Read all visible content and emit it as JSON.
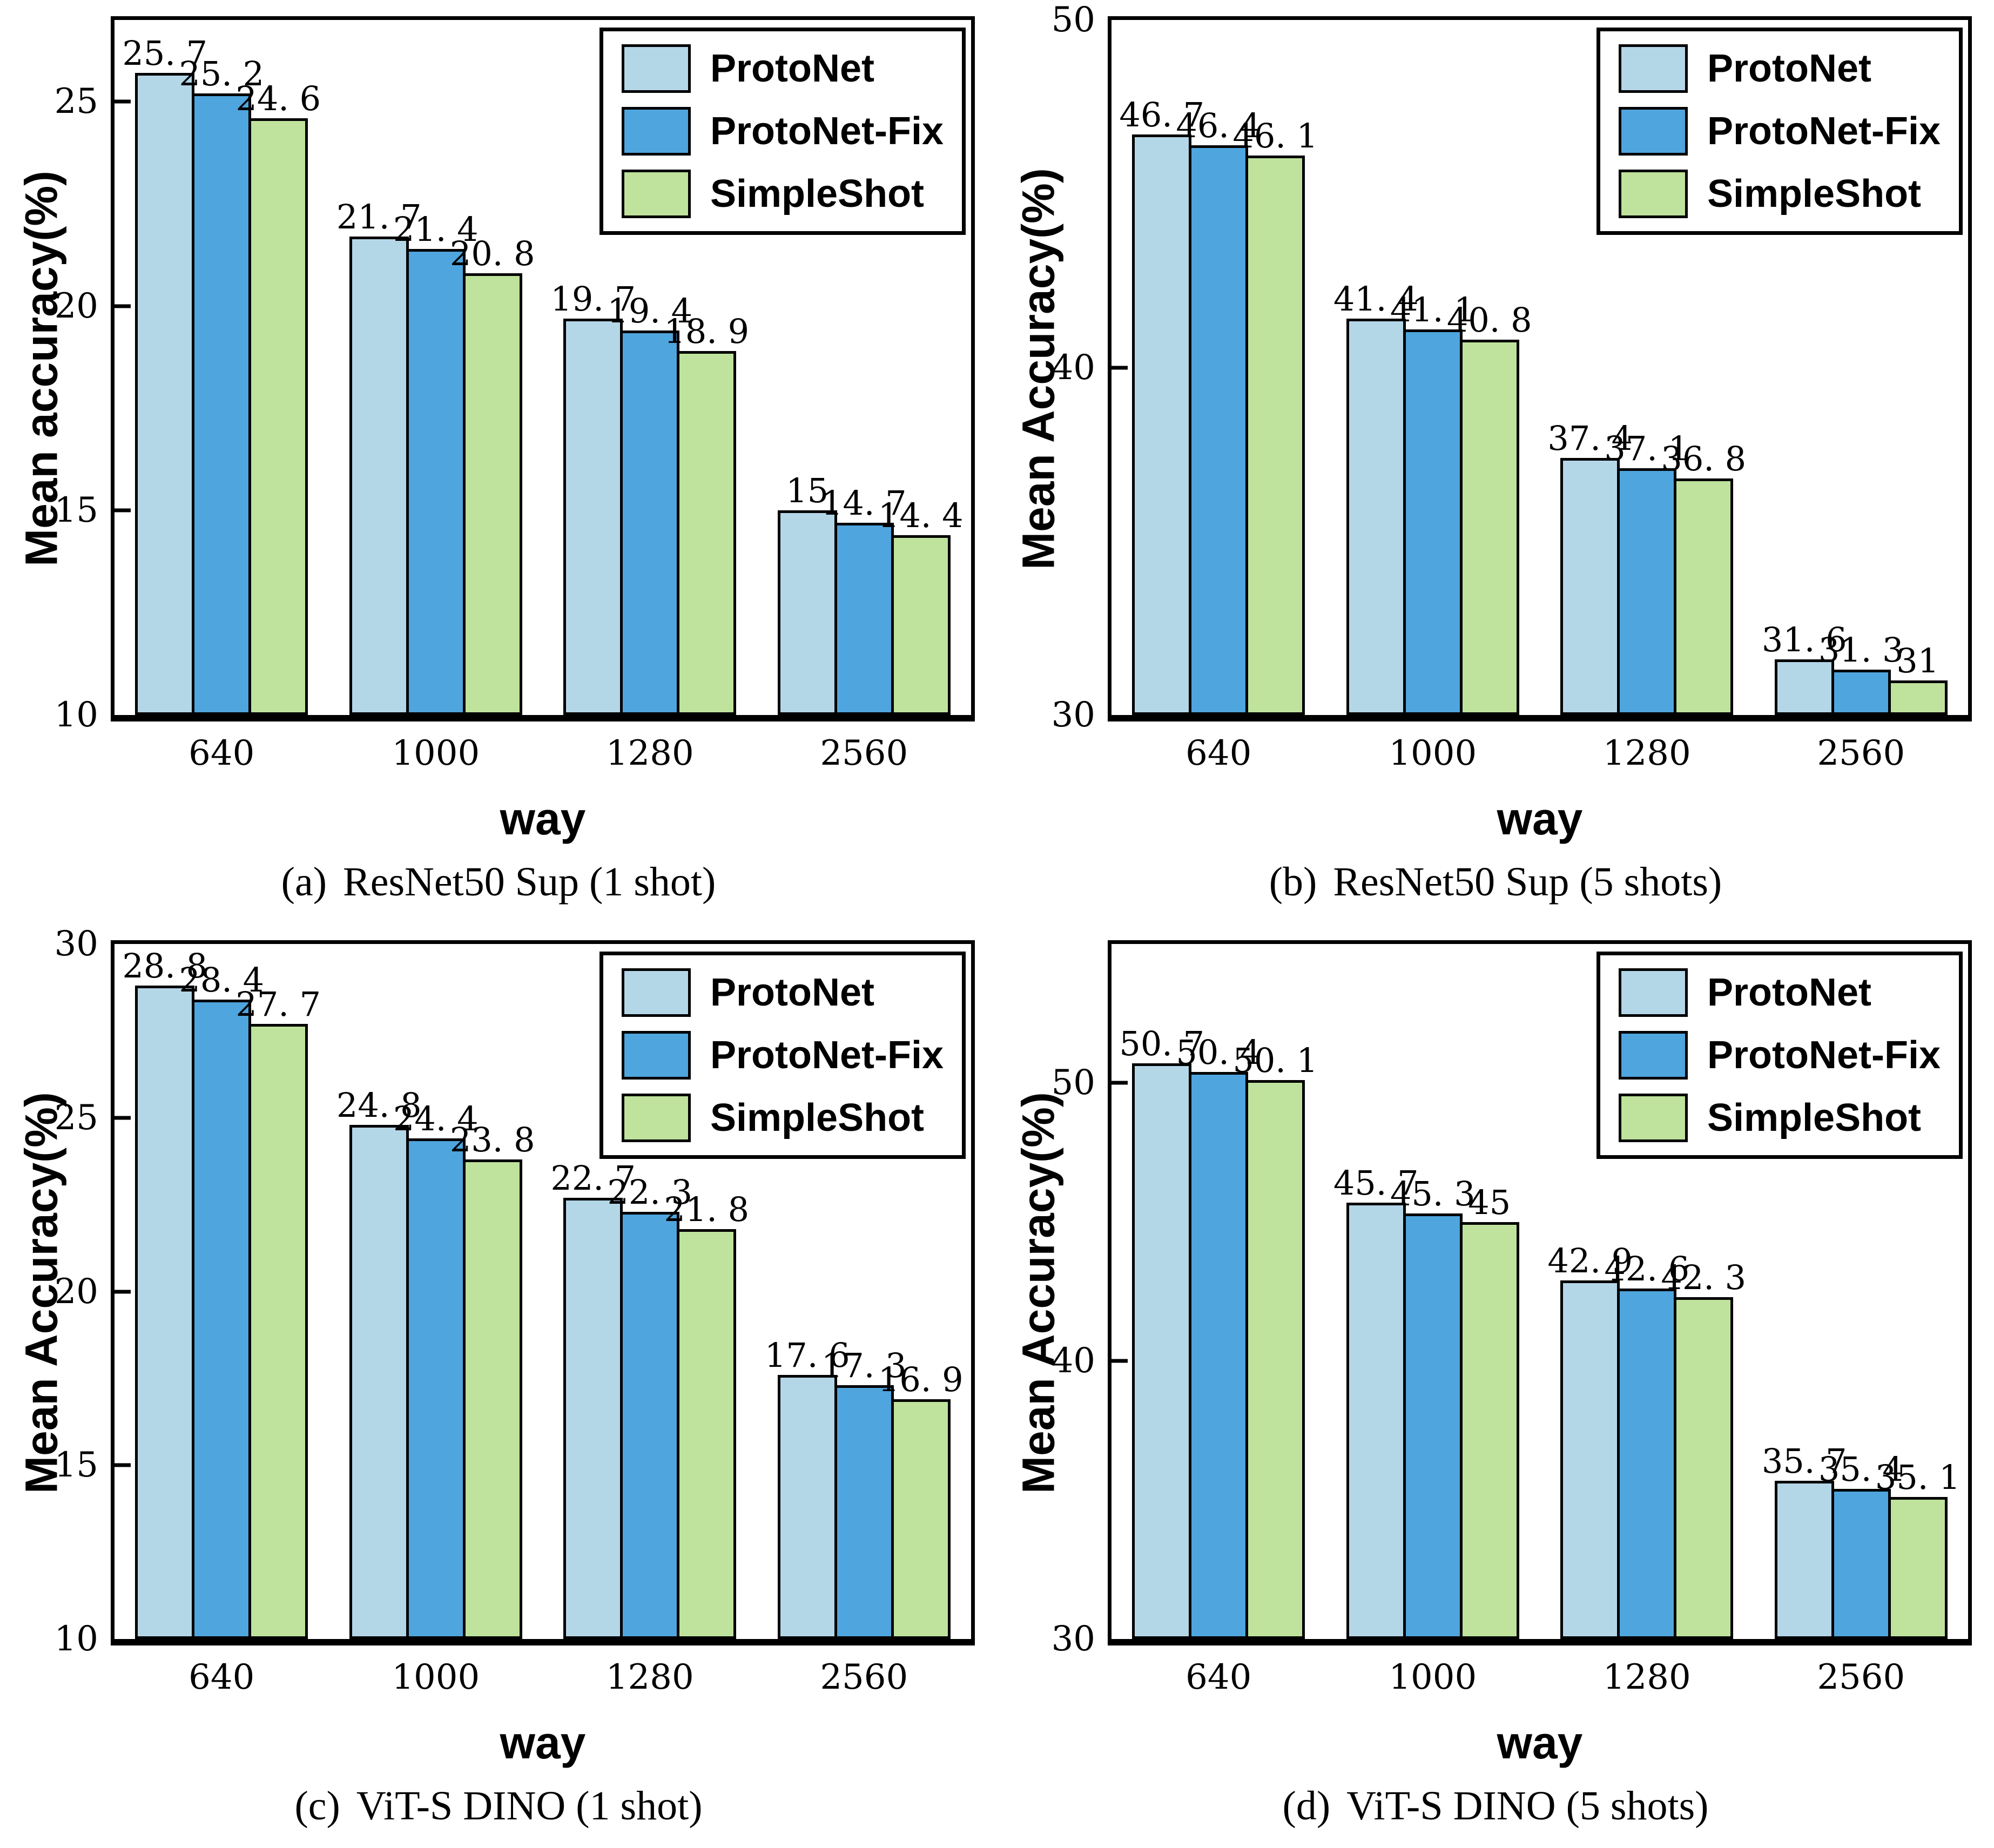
{
  "page": {
    "background": "#ffffff",
    "bar_border_color": "#000000"
  },
  "legend": {
    "position": "top-right",
    "items": [
      {
        "label": "ProtoNet",
        "color": "#b4d7e8"
      },
      {
        "label": "ProtoNet-Fix",
        "color": "#4fa5dd"
      },
      {
        "label": "SimpleShot",
        "color": "#bfe39c"
      }
    ]
  },
  "chart_data": [
    {
      "type": "bar",
      "title": "(a) ResNet50 Sup (1 shot)",
      "caption_prefix": "(a)",
      "caption_text": "ResNet50 Sup (1 shot)",
      "xlabel": "way",
      "ylabel": "Mean accuracy(%)",
      "categories": [
        "640",
        "1000",
        "1280",
        "2560"
      ],
      "yticks": [
        10,
        15,
        20,
        25
      ],
      "ylim": [
        10,
        27
      ],
      "grid": false,
      "legend_position": "top-right",
      "series": [
        {
          "name": "ProtoNet",
          "values": [
            25.7,
            21.7,
            19.7,
            15
          ]
        },
        {
          "name": "ProtoNet-Fix",
          "values": [
            25.2,
            21.4,
            19.4,
            14.7
          ]
        },
        {
          "name": "SimpleShot",
          "values": [
            24.6,
            20.8,
            18.9,
            14.4
          ]
        }
      ]
    },
    {
      "type": "bar",
      "title": "(b) ResNet50 Sup (5 shots)",
      "caption_prefix": "(b)",
      "caption_text": "ResNet50 Sup (5 shots)",
      "xlabel": "way",
      "ylabel": "Mean Accuracy(%)",
      "categories": [
        "640",
        "1000",
        "1280",
        "2560"
      ],
      "yticks": [
        30,
        40,
        50
      ],
      "ylim": [
        30,
        50
      ],
      "grid": false,
      "legend_position": "top-right",
      "series": [
        {
          "name": "ProtoNet",
          "values": [
            46.7,
            41.4,
            37.4,
            31.6
          ]
        },
        {
          "name": "ProtoNet-Fix",
          "values": [
            46.4,
            41.1,
            37.1,
            31.3
          ]
        },
        {
          "name": "SimpleShot",
          "values": [
            46.1,
            40.8,
            36.8,
            31
          ]
        }
      ]
    },
    {
      "type": "bar",
      "title": "(c) ViT-S DINO (1 shot)",
      "caption_prefix": "(c)",
      "caption_text": "ViT-S DINO (1 shot)",
      "xlabel": "way",
      "ylabel": "Mean Accuracy(%)",
      "categories": [
        "640",
        "1000",
        "1280",
        "2560"
      ],
      "yticks": [
        10,
        15,
        20,
        25,
        30
      ],
      "ylim": [
        10,
        30
      ],
      "grid": false,
      "legend_position": "top-right",
      "series": [
        {
          "name": "ProtoNet",
          "values": [
            28.8,
            24.8,
            22.7,
            17.6
          ]
        },
        {
          "name": "ProtoNet-Fix",
          "values": [
            28.4,
            24.4,
            22.3,
            17.3
          ]
        },
        {
          "name": "SimpleShot",
          "values": [
            27.7,
            23.8,
            21.8,
            16.9
          ]
        }
      ]
    },
    {
      "type": "bar",
      "title": "(d) ViT-S DINO (5 shots)",
      "caption_prefix": "(d)",
      "caption_text": "ViT-S DINO (5 shots)",
      "xlabel": "way",
      "ylabel": "Mean Accuracy(%)",
      "categories": [
        "640",
        "1000",
        "1280",
        "2560"
      ],
      "yticks": [
        30,
        40,
        50
      ],
      "ylim": [
        30,
        55
      ],
      "grid": false,
      "legend_position": "top-right",
      "series": [
        {
          "name": "ProtoNet",
          "values": [
            50.7,
            45.7,
            42.9,
            35.7
          ]
        },
        {
          "name": "ProtoNet-Fix",
          "values": [
            50.4,
            45.3,
            42.6,
            35.4
          ]
        },
        {
          "name": "SimpleShot",
          "values": [
            50.1,
            45,
            42.3,
            35.1
          ]
        }
      ]
    }
  ]
}
